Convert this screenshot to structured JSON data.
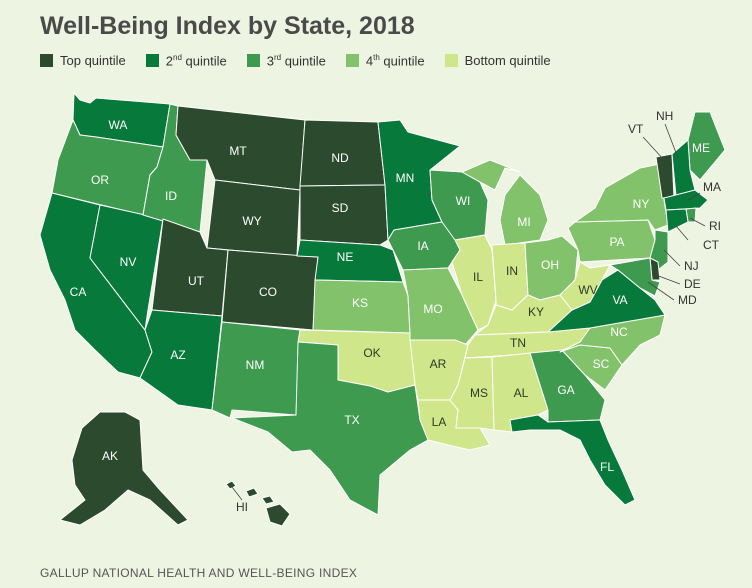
{
  "title": "Well-Being Index by State, 2018",
  "legend": [
    {
      "label": "Top quintile",
      "sup": "",
      "color": "#2c4a2e"
    },
    {
      "label": "2",
      "sup": "nd",
      "suffix": " quintile",
      "color": "#07793a"
    },
    {
      "label": "3",
      "sup": "rd",
      "suffix": " quintile",
      "color": "#3e9a4f"
    },
    {
      "label": "4",
      "sup": "th",
      "suffix": " quintile",
      "color": "#82c26a"
    },
    {
      "label": "Bottom quintile",
      "sup": "",
      "color": "#cfe78a"
    }
  ],
  "colors": {
    "top": "#2c4a2e",
    "q2": "#07793a",
    "q3": "#3e9a4f",
    "q4": "#82c26a",
    "bottom": "#cfe78a"
  },
  "states": [
    {
      "abbr": "WA",
      "quintile": "q2"
    },
    {
      "abbr": "OR",
      "quintile": "q3"
    },
    {
      "abbr": "CA",
      "quintile": "q2"
    },
    {
      "abbr": "NV",
      "quintile": "q2"
    },
    {
      "abbr": "ID",
      "quintile": "q3"
    },
    {
      "abbr": "MT",
      "quintile": "top"
    },
    {
      "abbr": "WY",
      "quintile": "top"
    },
    {
      "abbr": "UT",
      "quintile": "top"
    },
    {
      "abbr": "CO",
      "quintile": "top"
    },
    {
      "abbr": "AZ",
      "quintile": "q2"
    },
    {
      "abbr": "NM",
      "quintile": "q3"
    },
    {
      "abbr": "ND",
      "quintile": "top"
    },
    {
      "abbr": "SD",
      "quintile": "top"
    },
    {
      "abbr": "NE",
      "quintile": "q2"
    },
    {
      "abbr": "KS",
      "quintile": "q4"
    },
    {
      "abbr": "OK",
      "quintile": "bottom"
    },
    {
      "abbr": "TX",
      "quintile": "q3"
    },
    {
      "abbr": "MN",
      "quintile": "q2"
    },
    {
      "abbr": "IA",
      "quintile": "q3"
    },
    {
      "abbr": "MO",
      "quintile": "q4"
    },
    {
      "abbr": "AR",
      "quintile": "bottom"
    },
    {
      "abbr": "LA",
      "quintile": "bottom"
    },
    {
      "abbr": "WI",
      "quintile": "q3"
    },
    {
      "abbr": "IL",
      "quintile": "bottom"
    },
    {
      "abbr": "MI",
      "quintile": "q4"
    },
    {
      "abbr": "IN",
      "quintile": "bottom"
    },
    {
      "abbr": "OH",
      "quintile": "q4"
    },
    {
      "abbr": "KY",
      "quintile": "bottom"
    },
    {
      "abbr": "TN",
      "quintile": "bottom"
    },
    {
      "abbr": "MS",
      "quintile": "bottom"
    },
    {
      "abbr": "AL",
      "quintile": "bottom"
    },
    {
      "abbr": "GA",
      "quintile": "q3"
    },
    {
      "abbr": "FL",
      "quintile": "q2"
    },
    {
      "abbr": "SC",
      "quintile": "q4"
    },
    {
      "abbr": "NC",
      "quintile": "q4"
    },
    {
      "abbr": "VA",
      "quintile": "q2"
    },
    {
      "abbr": "WV",
      "quintile": "bottom"
    },
    {
      "abbr": "PA",
      "quintile": "q4"
    },
    {
      "abbr": "NY",
      "quintile": "q4"
    },
    {
      "abbr": "ME",
      "quintile": "q3"
    },
    {
      "abbr": "VT",
      "quintile": "top"
    },
    {
      "abbr": "NH",
      "quintile": "q2"
    },
    {
      "abbr": "MA",
      "quintile": "q2"
    },
    {
      "abbr": "RI",
      "quintile": "q3"
    },
    {
      "abbr": "CT",
      "quintile": "q2"
    },
    {
      "abbr": "NJ",
      "quintile": "q3"
    },
    {
      "abbr": "DE",
      "quintile": "top"
    },
    {
      "abbr": "MD",
      "quintile": "q3"
    },
    {
      "abbr": "AK",
      "quintile": "top"
    },
    {
      "abbr": "HI",
      "quintile": "top"
    }
  ],
  "footer": "GALLUP NATIONAL HEALTH AND WELL-BEING INDEX"
}
